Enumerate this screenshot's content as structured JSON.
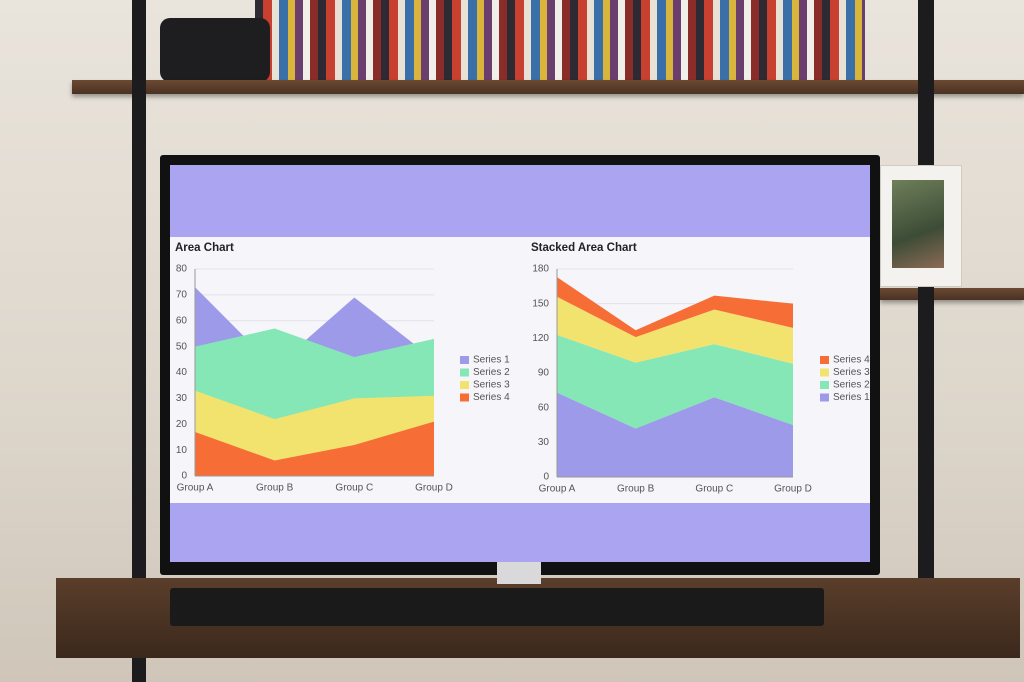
{
  "chart_data": [
    {
      "type": "area",
      "title": "Area Chart",
      "categories": [
        "Group A",
        "Group B",
        "Group C",
        "Group D"
      ],
      "series": [
        {
          "name": "Series 1",
          "color": "#9d9ae9",
          "values": [
            73,
            42,
            69,
            45
          ]
        },
        {
          "name": "Series 2",
          "color": "#84e7b5",
          "values": [
            50,
            57,
            46,
            53
          ]
        },
        {
          "name": "Series 3",
          "color": "#f2e36f",
          "values": [
            33,
            22,
            30,
            31
          ]
        },
        {
          "name": "Series 4",
          "color": "#f66d36",
          "values": [
            17,
            6,
            12,
            21
          ]
        }
      ],
      "ylim": [
        0,
        80
      ],
      "yticks": [
        0,
        10,
        20,
        30,
        40,
        50,
        60,
        70,
        80
      ],
      "grid": true,
      "legend": "right"
    },
    {
      "type": "stacked_area",
      "title": "Stacked Area Chart",
      "categories": [
        "Group A",
        "Group B",
        "Group C",
        "Group D"
      ],
      "series": [
        {
          "name": "Series 1",
          "color": "#9d9ae9",
          "values": [
            73,
            42,
            69,
            45
          ]
        },
        {
          "name": "Series 2",
          "color": "#84e7b5",
          "values": [
            50,
            57,
            46,
            53
          ]
        },
        {
          "name": "Series 3",
          "color": "#f2e36f",
          "values": [
            33,
            22,
            30,
            31
          ]
        },
        {
          "name": "Series 4",
          "color": "#f66d36",
          "values": [
            17,
            6,
            12,
            21
          ]
        }
      ],
      "ylim": [
        0,
        180
      ],
      "yticks": [
        0,
        30,
        60,
        90,
        120,
        150,
        180
      ],
      "grid": true,
      "legend": "right",
      "legend_order": "reverse"
    }
  ]
}
